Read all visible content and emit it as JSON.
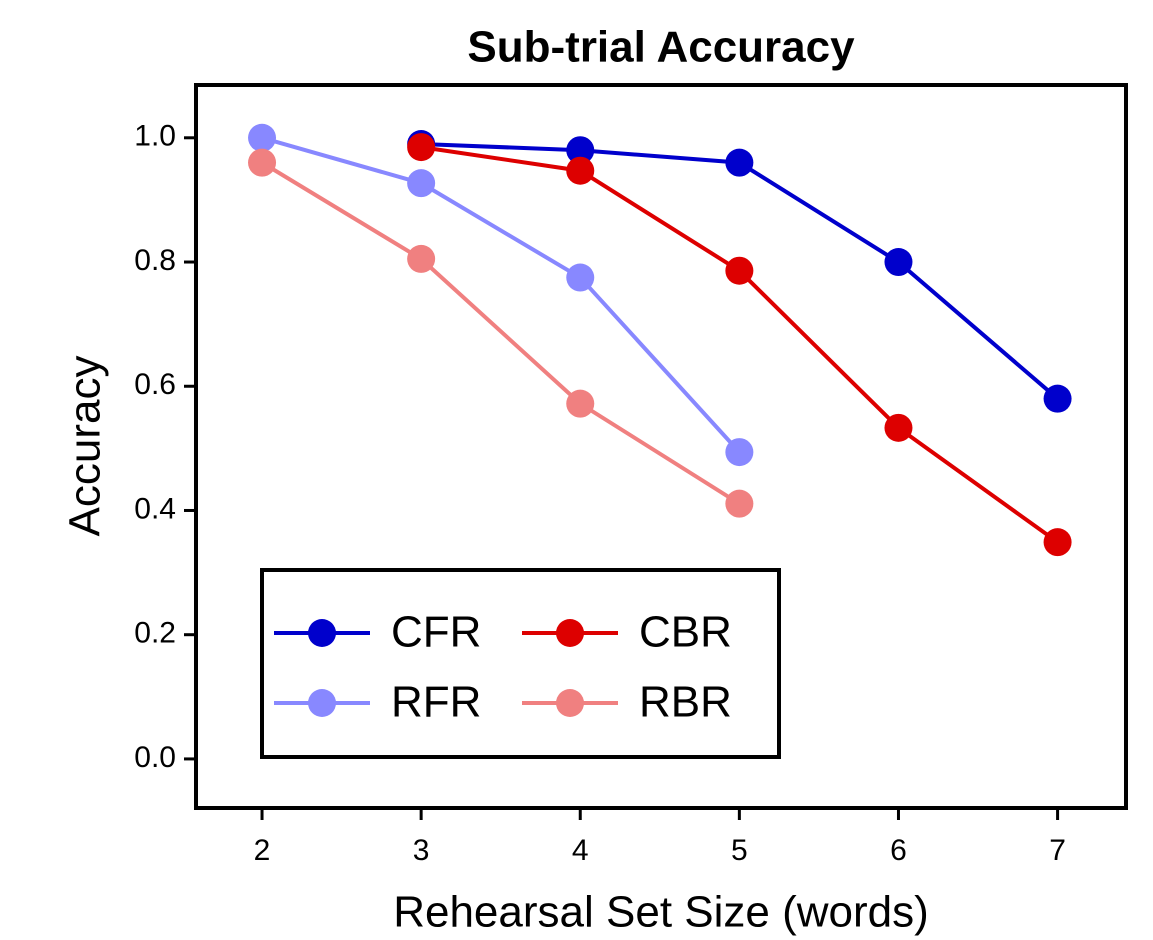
{
  "chart_data": {
    "type": "line",
    "title": "Sub-trial Accuracy",
    "x_label": "Rehearsal Set Size (words)",
    "y_label": "Accuracy",
    "xlim": [
      1.585,
      7.43
    ],
    "ylim": [
      -0.079,
      1.085
    ],
    "xticks": [
      2,
      3,
      4,
      5,
      6,
      7
    ],
    "yticks": [
      {
        "value": 0,
        "label": "0.0"
      },
      0.2,
      0.4,
      0.6,
      0.8,
      {
        "value": 1,
        "label": "1.0"
      }
    ],
    "legend_position": "lower left",
    "series": [
      {
        "name": "CFR",
        "color": "#0000cc",
        "x": [
          3,
          4,
          5,
          6,
          7
        ],
        "values": [
          0.99,
          0.98,
          0.96,
          0.8,
          0.58
        ]
      },
      {
        "name": "CBR",
        "color": "#dd0000",
        "x": [
          3,
          4,
          5,
          6,
          7
        ],
        "values": [
          0.985,
          0.947,
          0.786,
          0.533,
          0.349
        ]
      },
      {
        "name": "RFR",
        "color": "#8888ff",
        "x": [
          2,
          3,
          4,
          5
        ],
        "values": [
          1.0,
          0.927,
          0.775,
          0.494
        ]
      },
      {
        "name": "RBR",
        "color": "#f08080",
        "x": [
          2,
          3,
          4,
          5
        ],
        "values": [
          0.96,
          0.805,
          0.572,
          0.411
        ]
      }
    ]
  }
}
